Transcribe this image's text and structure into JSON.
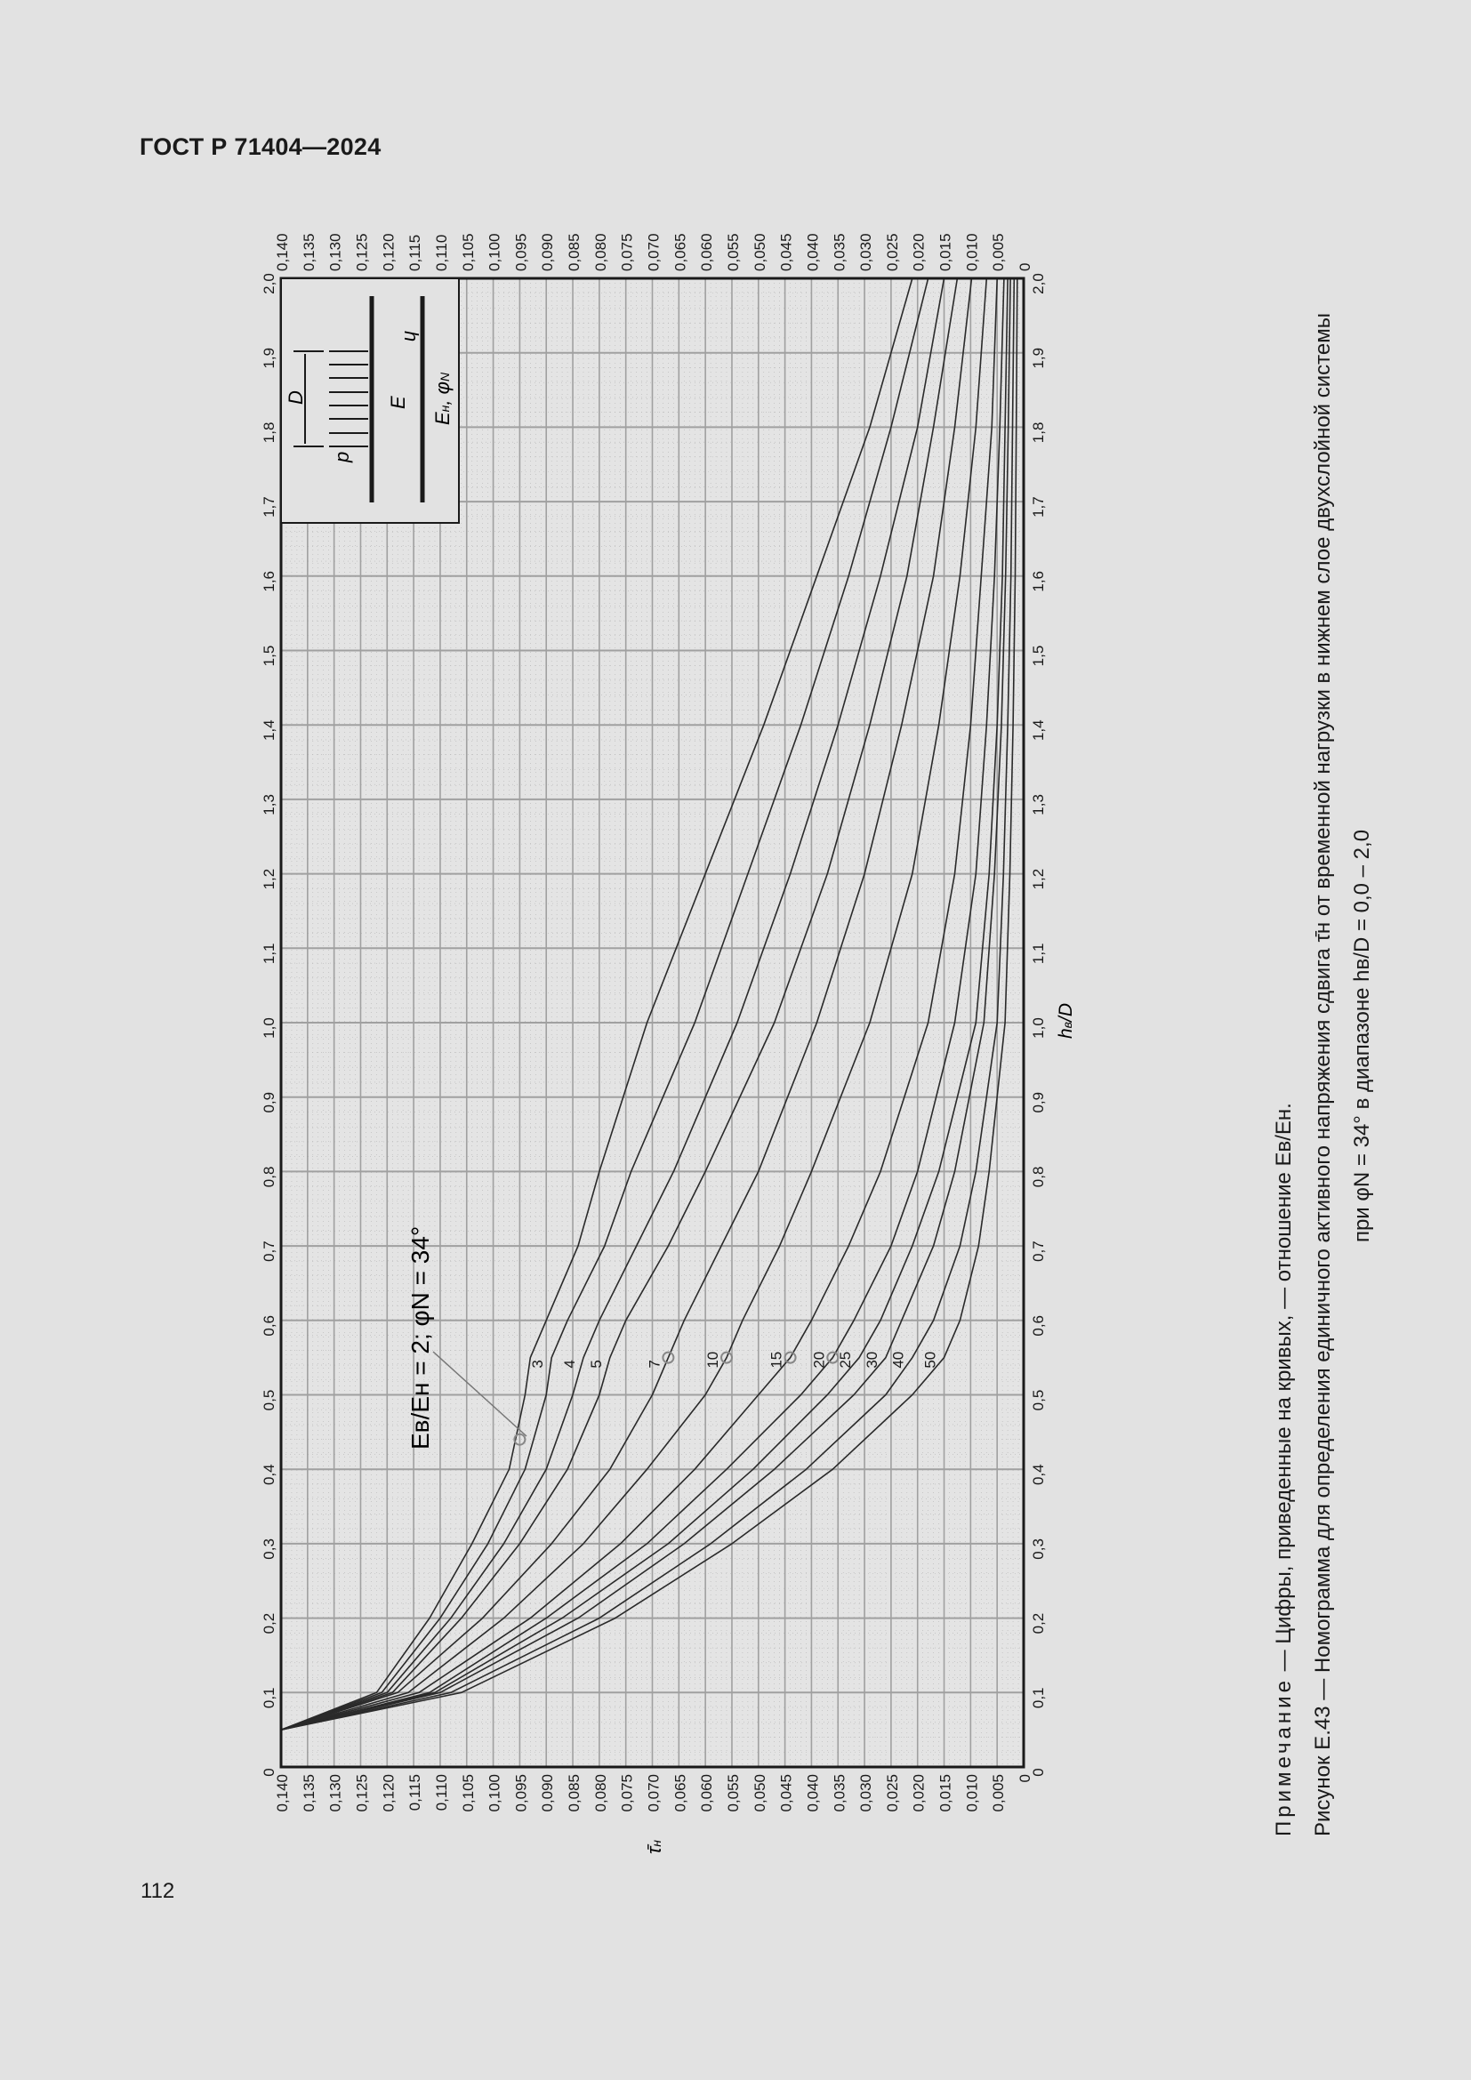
{
  "header": {
    "document_code": "ГОСТ Р 71404—2024"
  },
  "page": {
    "number": "112"
  },
  "inset": {
    "label_p": "p",
    "label_D": "D",
    "label_hv": "h",
    "label_hv_sub": "в",
    "label_Ev": "E",
    "label_Ev_sub": "в",
    "label_En": "E",
    "label_En_sub": "н",
    "label_phi": ", φ",
    "label_phi_sub": "N"
  },
  "annotation": {
    "main_label": "E",
    "main_label_text": "Eв/Eн = 2; φN = 34°"
  },
  "caption": {
    "note_prefix": "Примечание",
    "note_text": " — Цифры, приведенные на кривых, — отношение Eв/Eн.",
    "figure_line1": "Рисунок Е.43 — Номограмма для определения единичного активного напряжения сдвига τ̄н от временной нагрузки в нижнем слое двухслойной системы",
    "figure_line2": "при φN = 34° в диапазоне hв/D = 0,0 – 2,0"
  },
  "chart_data": {
    "type": "line",
    "title": "Номограмма для определения единичного активного напряжения сдвига τ̄н от временной нагрузки в нижнем слое двухслойной системы при φN = 34° в диапазоне hв/D = 0,0 – 2,0",
    "orientation": "rotated 90° counter-clockwise on page",
    "xlabel": "hв/D",
    "ylabel": "τ̄н",
    "xlim": [
      0,
      2.0
    ],
    "ylim": [
      0,
      0.14
    ],
    "x_ticks": [
      "0",
      "0,1",
      "0,2",
      "0,3",
      "0,4",
      "0,5",
      "0,6",
      "0,7",
      "0,8",
      "0,9",
      "1,0",
      "1,1",
      "1,2",
      "1,3",
      "1,4",
      "1,5",
      "1,6",
      "1,7",
      "1,8",
      "1,9",
      "2,0"
    ],
    "y_ticks": [
      "0,140",
      "0,135",
      "0,130",
      "0,125",
      "0,120",
      "0,115",
      "0,110",
      "0,105",
      "0,100",
      "0,095",
      "0,090",
      "0,085",
      "0,080",
      "0,075",
      "0,070",
      "0,065",
      "0,060",
      "0,055",
      "0,050",
      "0,045",
      "0,040",
      "0,035",
      "0,030",
      "0,025",
      "0,020",
      "0,015",
      "0,010",
      "0,005",
      "0"
    ],
    "grid": true,
    "legend": "curve labels = Eв/Eн ratio",
    "annotation": "Eв/Eн = 2; φN = 34°",
    "x": [
      0.05,
      0.1,
      0.2,
      0.3,
      0.4,
      0.5,
      0.55,
      0.6,
      0.7,
      0.8,
      1.0,
      1.2,
      1.4,
      1.6,
      1.8,
      2.0
    ],
    "series": [
      {
        "name": "2",
        "values": [
          0.14,
          0.122,
          0.112,
          0.104,
          0.097,
          0.094,
          0.093,
          0.09,
          0.084,
          0.08,
          0.071,
          0.06,
          0.049,
          0.039,
          0.029,
          0.021
        ]
      },
      {
        "name": "3",
        "values": [
          0.14,
          0.121,
          0.11,
          0.101,
          0.094,
          0.09,
          0.089,
          0.086,
          0.079,
          0.074,
          0.062,
          0.052,
          0.042,
          0.033,
          0.025,
          0.018
        ]
      },
      {
        "name": "4",
        "values": [
          0.14,
          0.12,
          0.108,
          0.098,
          0.09,
          0.085,
          0.083,
          0.08,
          0.073,
          0.066,
          0.054,
          0.044,
          0.035,
          0.027,
          0.02,
          0.015
        ]
      },
      {
        "name": "5",
        "values": [
          0.14,
          0.119,
          0.106,
          0.095,
          0.086,
          0.08,
          0.078,
          0.075,
          0.067,
          0.06,
          0.047,
          0.037,
          0.029,
          0.022,
          0.017,
          0.0125
        ]
      },
      {
        "name": "7",
        "values": [
          0.14,
          0.118,
          0.102,
          0.089,
          0.078,
          0.07,
          0.067,
          0.064,
          0.057,
          0.05,
          0.039,
          0.03,
          0.023,
          0.017,
          0.013,
          0.0098
        ]
      },
      {
        "name": "10",
        "values": [
          0.14,
          0.116,
          0.098,
          0.083,
          0.071,
          0.06,
          0.056,
          0.053,
          0.046,
          0.04,
          0.029,
          0.021,
          0.016,
          0.012,
          0.009,
          0.007
        ]
      },
      {
        "name": "15",
        "values": [
          0.14,
          0.114,
          0.093,
          0.076,
          0.062,
          0.05,
          0.044,
          0.04,
          0.033,
          0.027,
          0.018,
          0.013,
          0.01,
          0.008,
          0.006,
          0.005
        ]
      },
      {
        "name": "20",
        "values": [
          0.14,
          0.112,
          0.09,
          0.071,
          0.056,
          0.042,
          0.036,
          0.032,
          0.025,
          0.02,
          0.013,
          0.009,
          0.007,
          0.0055,
          0.0045,
          0.0037
        ]
      },
      {
        "name": "25",
        "values": [
          0.14,
          0.111,
          0.087,
          0.067,
          0.051,
          0.037,
          0.031,
          0.027,
          0.021,
          0.016,
          0.009,
          0.0065,
          0.005,
          0.004,
          0.0035,
          0.003
        ]
      },
      {
        "name": "30",
        "values": [
          0.14,
          0.11,
          0.084,
          0.064,
          0.047,
          0.032,
          0.026,
          0.023,
          0.017,
          0.013,
          0.0075,
          0.0055,
          0.0042,
          0.0034,
          0.0029,
          0.0025
        ]
      },
      {
        "name": "40",
        "values": [
          0.14,
          0.108,
          0.08,
          0.059,
          0.041,
          0.026,
          0.021,
          0.017,
          0.012,
          0.009,
          0.005,
          0.0038,
          0.003,
          0.0024,
          0.0021,
          0.0018
        ]
      },
      {
        "name": "50",
        "values": [
          0.14,
          0.106,
          0.077,
          0.055,
          0.036,
          0.021,
          0.015,
          0.012,
          0.0085,
          0.0065,
          0.0035,
          0.0026,
          0.002,
          0.0016,
          0.0014,
          0.0012
        ]
      }
    ],
    "markers": [
      {
        "series": "2",
        "x": 0.44,
        "y": 0.095
      },
      {
        "series": "7",
        "x": 0.55,
        "y": 0.067
      },
      {
        "series": "10",
        "x": 0.55,
        "y": 0.056
      },
      {
        "series": "15",
        "x": 0.55,
        "y": 0.044
      },
      {
        "series": "20",
        "x": 0.55,
        "y": 0.036
      }
    ]
  }
}
